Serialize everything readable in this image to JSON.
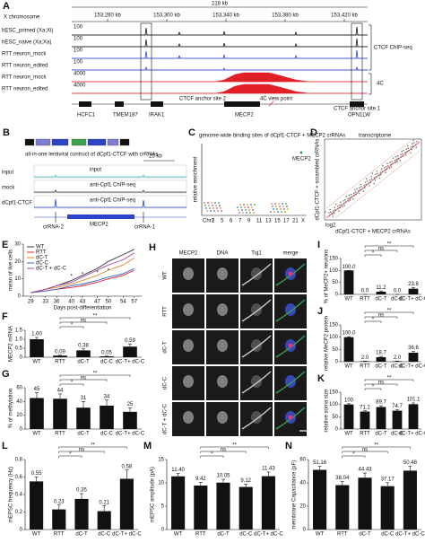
{
  "panels": {
    "A": {
      "label": "A",
      "scale": "218 kb",
      "chromosome": "X chromosome",
      "ticks": [
        "153,260 kb",
        "153,300 kb",
        "153,340 kb",
        "153,380 kb",
        "153,420 kb"
      ],
      "tracks": [
        {
          "name": "hESC_primed (Xa;Xi)",
          "max": 100
        },
        {
          "name": "hESC_naive (Xa;Xa)",
          "max": 100
        },
        {
          "name": "RTT neuron_mock",
          "max": 100
        },
        {
          "name": "RTT neuron_edited",
          "max": 100
        },
        {
          "name": "RTT neuron_mock",
          "max": 4000
        },
        {
          "name": "RTT neuron_edited",
          "max": 4000
        }
      ],
      "chip_label": "CTCF ChIP-seq",
      "fourc_label": "4C",
      "anchor2": "CTCF anchor site 2",
      "viewpoint": "4C view point",
      "anchor1": "CTCF anchor site 1",
      "genes": [
        "HCFC1",
        "TMEM187",
        "IRAK1",
        "MECP2",
        "OPN1LW"
      ]
    },
    "B": {
      "label": "B",
      "construct": "all-in-one lentiviral contruct of dCpf1-CTCF with crRNAs",
      "scale": "25 kb",
      "tracks": [
        {
          "name": "input",
          "inner": "input"
        },
        {
          "name": "mock",
          "inner": "anti-Cpf1 ChIP-seq"
        },
        {
          "name": "dCpf1-CTCF",
          "inner": "anti-Cpf1 ChIP-seq"
        }
      ],
      "features": [
        "crRNA-2",
        "MECP2",
        "crRNA-1"
      ]
    },
    "C": {
      "label": "C",
      "title": "genome-wide binding sites of dCpf1-CTCF + MECP2 crRNAs",
      "y_label": "relative enrichment",
      "highlight": "MECP2",
      "chromosomes": [
        "Chr1",
        "2",
        "5",
        "6",
        "7",
        "9",
        "11",
        "13",
        "15",
        "17",
        "21",
        "X"
      ]
    },
    "D": {
      "label": "D",
      "title": "transcriptome",
      "y_label": "dCpf1-CTCF + scrambled crRNAs",
      "x_label": "dCpf1-CTCF + MECP2 crRNAs",
      "log": "log2"
    },
    "H": {
      "label": "H",
      "columns": [
        "MECP2",
        "DNA",
        "Tuj1",
        "merge"
      ],
      "rows": [
        "WT",
        "RTT",
        "dC-T",
        "dC-C",
        "dC-T + dC-C"
      ]
    }
  },
  "chart_data": [
    {
      "label": "E",
      "type": "line",
      "y_label": "mean of live cells",
      "x_label": "Days post-differentiation",
      "x": [
        29,
        33,
        36,
        40,
        43,
        47,
        50,
        54,
        57
      ],
      "xlim": [
        27,
        59
      ],
      "xticks": [
        29,
        33,
        36,
        40,
        43,
        47,
        50,
        54,
        57
      ],
      "ylim": [
        0,
        30
      ],
      "yticks": [
        0,
        10,
        20,
        30
      ],
      "annotations": [
        "*",
        "*",
        "*",
        "*"
      ],
      "series": [
        {
          "name": "WT",
          "color": "#333333",
          "values": [
            2,
            4,
            6,
            9,
            12,
            16,
            20,
            24,
            27
          ]
        },
        {
          "name": "RTT",
          "color": "#e0202a",
          "values": [
            2,
            3,
            4,
            5,
            6,
            8,
            10,
            12,
            15
          ]
        },
        {
          "name": "dC-T",
          "color": "#d98a2b",
          "values": [
            2,
            4,
            5,
            7,
            9,
            12,
            15,
            18,
            22
          ]
        },
        {
          "name": "dC-C",
          "color": "#3a62c4",
          "values": [
            2,
            3,
            4,
            6,
            7,
            9,
            11,
            13,
            16
          ]
        },
        {
          "name": "dC-T + dC-C",
          "color": "#a4489c",
          "values": [
            2,
            4,
            6,
            8,
            11,
            15,
            18,
            21,
            25
          ]
        }
      ]
    },
    {
      "label": "F",
      "type": "bar",
      "y_label": "MECP2 mRNA",
      "categories": [
        "WT",
        "RTT",
        "dC-T",
        "dC-C",
        "dC-T+ dC-C"
      ],
      "values": [
        1.0,
        0.09,
        0.38,
        0.05,
        0.59
      ],
      "value_labels": [
        "1.00",
        "0.09",
        "0.38",
        "0.05",
        "0.59"
      ],
      "errors": [
        0.1,
        0.02,
        0.08,
        0.01,
        0.15
      ],
      "ylim": [
        0,
        1.5
      ],
      "yticks": [
        0,
        0.5,
        {
          "value": 1,
          "label": "1.0"
        },
        1.5
      ],
      "color": "#111111",
      "annotations": [
        "*",
        "ns",
        "**"
      ]
    },
    {
      "label": "G",
      "type": "bar",
      "y_label": "% of methylation",
      "categories": [
        "WT",
        "RTT",
        "dC-T",
        "dC-C",
        "dC-T+ dC-C"
      ],
      "values": [
        45,
        44,
        31,
        34,
        25
      ],
      "errors": [
        8,
        7,
        9,
        8,
        6
      ],
      "ylim": [
        0,
        60
      ],
      "yticks": [
        0,
        20,
        40,
        60
      ],
      "color": "#111111",
      "annotations": [
        "*",
        "ns",
        "**"
      ]
    },
    {
      "label": "I",
      "type": "bar",
      "y_label": "% of MeCP2+ neurons",
      "categories": [
        "WT",
        "RTT",
        "dC-T",
        "dC-C",
        "dC-T+ dC-C"
      ],
      "values": [
        100.0,
        0.0,
        11.2,
        0.0,
        23.8
      ],
      "value_labels": [
        "100.0",
        "0.0",
        "11.2",
        "0.0",
        "23.8"
      ],
      "errors": [
        0,
        0,
        3,
        0,
        5
      ],
      "ylim": [
        0,
        150
      ],
      "yticks": [
        0,
        50,
        100,
        150
      ],
      "color": "#111111",
      "annotations": [
        "*",
        "ns",
        "**"
      ]
    },
    {
      "label": "J",
      "type": "bar",
      "y_label": "relative MeCP2 protein",
      "categories": [
        "WT",
        "RTT",
        "dC-T",
        "dC-C",
        "dC-T+ dC-C"
      ],
      "values": [
        100.0,
        2.0,
        18.7,
        2.0,
        36.6
      ],
      "value_labels": [
        "100.0",
        "2.0",
        "18.7",
        "2.0",
        "36.6"
      ],
      "errors": [
        2,
        0.5,
        3,
        0.5,
        5
      ],
      "ylim": [
        0,
        150
      ],
      "yticks": [
        0,
        50,
        100,
        150
      ],
      "color": "#111111",
      "annotations": [
        "*",
        "ns",
        "**"
      ]
    },
    {
      "label": "K",
      "type": "bar",
      "y_label": "relative soma size",
      "categories": [
        "WT",
        "RTT",
        "dC-T",
        "dC-C",
        "dC-T+ dC-C"
      ],
      "values": [
        100,
        71.2,
        89.7,
        74.7,
        101.1
      ],
      "value_labels": [
        "100",
        "71.2",
        "89.7",
        "74.7",
        "101.1"
      ],
      "errors": [
        3,
        3,
        5,
        4,
        5
      ],
      "ylim": [
        0,
        150
      ],
      "yticks": [
        0,
        50,
        100,
        150
      ],
      "color": "#111111",
      "annotations": [
        "*",
        "ns",
        "**"
      ]
    },
    {
      "label": "L",
      "type": "bar",
      "y_label": "mEPSC frequency (Hz)",
      "categories": [
        "WT",
        "RTT",
        "dC-T",
        "dC-C",
        "dC-T+ dC-C"
      ],
      "values": [
        0.55,
        0.23,
        0.35,
        0.21,
        0.58
      ],
      "value_labels": [
        "0.55",
        "0.23",
        "0.35",
        "0.21",
        "0.58"
      ],
      "errors": [
        0.05,
        0.05,
        0.06,
        0.06,
        0.1
      ],
      "ylim": [
        0,
        0.8
      ],
      "yticks": [
        0,
        0.2,
        0.4,
        0.6,
        0.8
      ],
      "color": "#111111",
      "annotations": [
        "*",
        "ns",
        "**"
      ]
    },
    {
      "label": "M",
      "type": "bar",
      "y_label": "mEPSC amplitude (pA)",
      "categories": [
        "WT",
        "RTT",
        "dC-T",
        "dC-C",
        "dC-T+ dC-C"
      ],
      "values": [
        11.4,
        9.42,
        10.05,
        9.12,
        11.43
      ],
      "value_labels": [
        "11.40",
        "9.42",
        "10.05",
        "9.12",
        "11.43"
      ],
      "errors": [
        0.6,
        0.7,
        0.7,
        0.6,
        0.9
      ],
      "ylim": [
        0,
        15
      ],
      "yticks": [
        0,
        5,
        10,
        15
      ],
      "color": "#111111",
      "annotations": [
        "*",
        "ns",
        "**"
      ]
    },
    {
      "label": "N",
      "type": "bar",
      "y_label": "membrane Capacitance (pF)",
      "categories": [
        "WT",
        "RTT",
        "dC-T",
        "dC-C",
        "dC-T+ dC-C"
      ],
      "values": [
        51.16,
        38.04,
        44.43,
        37.17,
        50.48
      ],
      "value_labels": [
        "51.16",
        "38.04",
        "44.43",
        "37.17",
        "50.48"
      ],
      "errors": [
        3,
        3,
        4,
        3,
        4
      ],
      "ylim": [
        0,
        60
      ],
      "yticks": [
        0,
        20,
        40,
        60
      ],
      "color": "#111111",
      "annotations": [
        "*",
        "ns",
        "**"
      ]
    }
  ]
}
